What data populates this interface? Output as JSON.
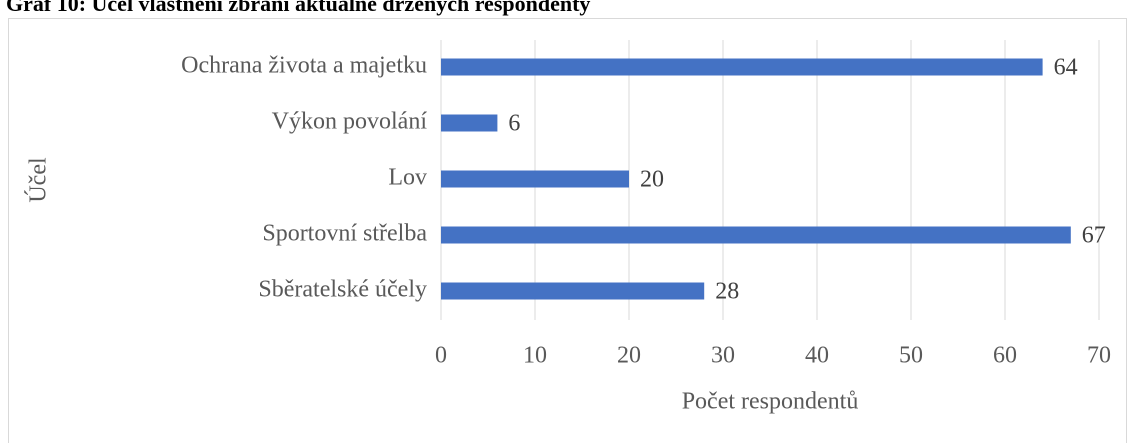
{
  "chart_data": {
    "type": "hbar",
    "title": "Graf 10: Účel vlastnění zbraní aktuálně držených respondenty",
    "categories": [
      "Ochrana života a majetku",
      "Výkon povolání",
      "Lov",
      "Sportovní střelba",
      "Sběratelské účely"
    ],
    "values": [
      64,
      6,
      20,
      67,
      28
    ],
    "color": "#4472c4",
    "xlabel": "Počet respondentů",
    "ylabel": "Účel",
    "xlim": [
      0,
      70
    ],
    "xticks": [
      0,
      10,
      20,
      30,
      40,
      50,
      60,
      70
    ],
    "grid": true
  }
}
